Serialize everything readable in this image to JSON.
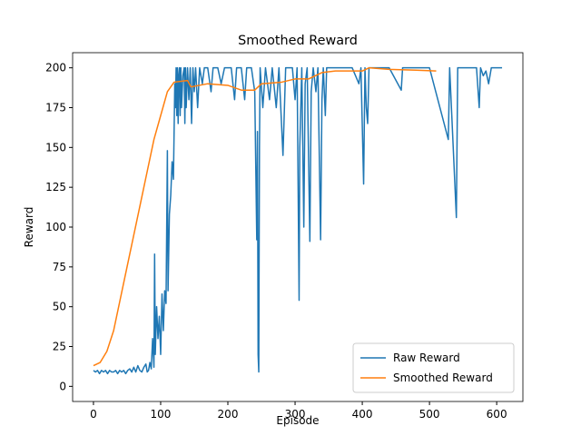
{
  "chart_data": {
    "type": "line",
    "title": "Smoothed Reward",
    "xlabel": "Episode",
    "ylabel": "Reward",
    "xlim": [
      -31,
      639
    ],
    "ylim": [
      -9.5,
      209.5
    ],
    "xticks": [
      0,
      100,
      200,
      300,
      400,
      500,
      600
    ],
    "yticks": [
      0,
      25,
      50,
      75,
      100,
      125,
      150,
      175,
      200
    ],
    "legend": "lower right",
    "grid": false,
    "series": [
      {
        "name": "Raw Reward",
        "color": "#1f77b4",
        "x": [
          0,
          3,
          6,
          9,
          12,
          15,
          18,
          21,
          24,
          27,
          30,
          33,
          36,
          39,
          42,
          45,
          48,
          51,
          54,
          57,
          60,
          63,
          66,
          69,
          72,
          75,
          78,
          80,
          82,
          84,
          86,
          88,
          90,
          91,
          92,
          94,
          96,
          98,
          100,
          102,
          104,
          106,
          108,
          110,
          111,
          113,
          115,
          117,
          119,
          121,
          122,
          123,
          124,
          125,
          126,
          127,
          128,
          129,
          130,
          131,
          133,
          135,
          136,
          137,
          138,
          140,
          142,
          144,
          146,
          148,
          150,
          152,
          155,
          158,
          162,
          165,
          170,
          175,
          178,
          185,
          190,
          195,
          205,
          210,
          213,
          220,
          225,
          228,
          235,
          240,
          243,
          244,
          245,
          246,
          247,
          248,
          252,
          256,
          262,
          266,
          272,
          276,
          282,
          286,
          296,
          300,
          303,
          306,
          307,
          310,
          313,
          315,
          318,
          322,
          324,
          327,
          331,
          334,
          338,
          340,
          342,
          345,
          347,
          355,
          365,
          375,
          385,
          395,
          398,
          402,
          404,
          406,
          408,
          410,
          420,
          440,
          458,
          460,
          480,
          500,
          528,
          530,
          540,
          542,
          560,
          570,
          574,
          576,
          580,
          584,
          588,
          592,
          600,
          608
        ],
        "values": [
          10,
          9,
          10,
          8,
          10,
          9,
          10,
          8,
          10,
          9,
          9,
          10,
          8,
          10,
          9,
          10,
          8,
          10,
          11,
          9,
          12,
          9,
          13,
          10,
          9,
          12,
          14,
          9,
          10,
          15,
          11,
          30,
          12,
          83,
          20,
          50,
          30,
          44,
          20,
          58,
          35,
          60,
          52,
          148,
          60,
          108,
          120,
          141,
          130,
          190,
          175,
          200,
          170,
          200,
          165,
          195,
          200,
          170,
          200,
          175,
          195,
          200,
          165,
          200,
          175,
          200,
          180,
          200,
          165,
          200,
          185,
          200,
          175,
          200,
          190,
          200,
          200,
          185,
          200,
          200,
          190,
          200,
          200,
          180,
          200,
          200,
          180,
          200,
          200,
          185,
          92,
          160,
          20,
          9,
          150,
          200,
          175,
          200,
          180,
          200,
          175,
          200,
          145,
          200,
          200,
          180,
          200,
          54,
          150,
          200,
          100,
          190,
          200,
          91,
          185,
          200,
          185,
          200,
          92,
          180,
          200,
          170,
          200,
          200,
          200,
          200,
          200,
          190,
          200,
          127,
          200,
          175,
          165,
          200,
          200,
          200,
          186,
          200,
          200,
          200,
          155,
          200,
          106,
          200,
          200,
          200,
          175,
          200,
          195,
          198,
          190,
          200,
          200,
          200
        ]
      },
      {
        "name": "Smoothed Reward",
        "color": "#ff7f0e",
        "x": [
          0,
          10,
          20,
          30,
          40,
          50,
          60,
          70,
          80,
          90,
          100,
          110,
          120,
          140,
          145,
          170,
          200,
          220,
          240,
          250,
          280,
          300,
          320,
          340,
          360,
          400,
          410,
          440,
          480,
          510
        ],
        "values": [
          13,
          15,
          22,
          35,
          55,
          75,
          95,
          115,
          135,
          155,
          170,
          185,
          191,
          192,
          188,
          190,
          189,
          186,
          186,
          190,
          191,
          193,
          193,
          197,
          198,
          198,
          200,
          199,
          198.5,
          198
        ]
      }
    ]
  }
}
